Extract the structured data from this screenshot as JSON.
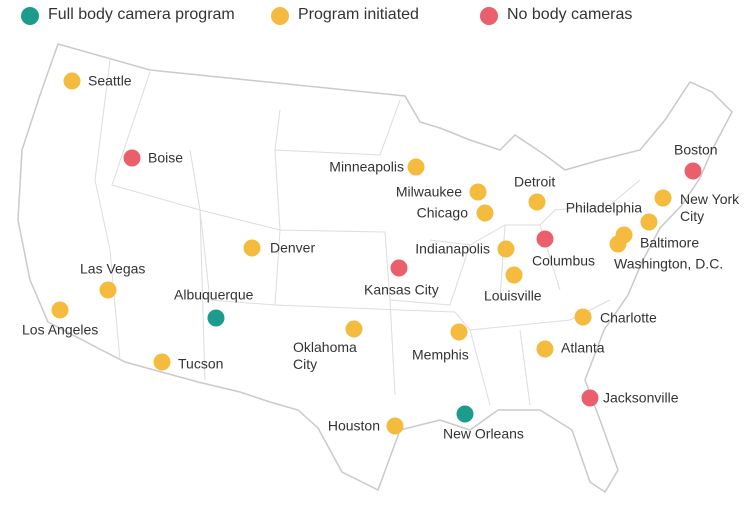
{
  "groups": [
    {
      "label": "Full body camera program",
      "color": "#1c9c8c",
      "cities": [
        "Albuquerque",
        "New Orleans"
      ]
    },
    {
      "label": "Program initiated",
      "color": "#f5bb3e",
      "cities": [
        "Seattle",
        "Minneapolis",
        "Milwaukee",
        "Chicago",
        "Detroit",
        "Philadelphia",
        "New York City",
        "Indianapolis",
        "Baltimore",
        "Washington, D.C.",
        "Louisville",
        "Denver",
        "Las Vegas",
        "Los Angeles",
        "Tucson",
        "Oklahoma City",
        "Memphis",
        "Charlotte",
        "Atlanta",
        "Houston"
      ]
    },
    {
      "label": "No body cameras",
      "color": "#e95f6b",
      "cities": [
        "Boise",
        "Boston",
        "Columbus",
        "Kansas City",
        "Jacksonville"
      ]
    }
  ]
}
